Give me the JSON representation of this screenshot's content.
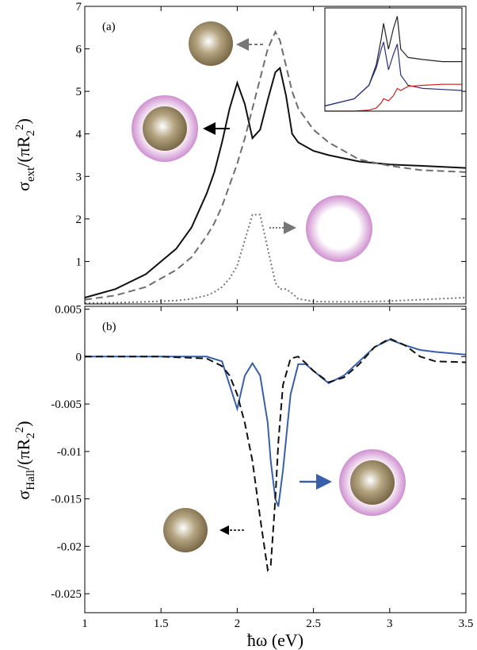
{
  "chart_data": [
    {
      "type": "line",
      "annotation": "(a)",
      "ylabel": {
        "symbol": "σ",
        "subscript": "ext",
        "denominator": "/(πR",
        "r_subscript": "2",
        "r_superscript": "2",
        "close": ")"
      },
      "xlim": [
        1,
        3.5
      ],
      "ylim": [
        0,
        7
      ],
      "yticks": [
        1,
        2,
        3,
        4,
        5,
        6,
        7
      ],
      "x": [
        1,
        1.2,
        1.4,
        1.6,
        1.7,
        1.8,
        1.85,
        1.9,
        1.95,
        2.0,
        2.05,
        2.1,
        2.15,
        2.2,
        2.25,
        2.28,
        2.32,
        2.36,
        2.4,
        2.5,
        2.6,
        2.8,
        3.0,
        3.2,
        3.5
      ],
      "series": [
        {
          "color": "#111111",
          "dash": "solid",
          "values": [
            0.15,
            0.35,
            0.7,
            1.3,
            1.8,
            2.6,
            3.1,
            3.8,
            4.6,
            5.2,
            4.7,
            3.9,
            4.1,
            4.8,
            5.45,
            5.55,
            4.9,
            4.0,
            3.8,
            3.6,
            3.5,
            3.35,
            3.28,
            3.25,
            3.2
          ]
        },
        {
          "color": "#6e6e6e",
          "dash": "dashed",
          "values": [
            0.1,
            0.2,
            0.4,
            0.8,
            1.1,
            1.6,
            1.9,
            2.3,
            2.8,
            3.3,
            3.9,
            4.6,
            5.3,
            6.0,
            6.4,
            6.2,
            5.6,
            5.0,
            4.6,
            4.1,
            3.8,
            3.4,
            3.25,
            3.15,
            3.1
          ]
        },
        {
          "color": "#777777",
          "dash": "dotted",
          "values": [
            0.02,
            0.03,
            0.05,
            0.08,
            0.12,
            0.2,
            0.28,
            0.4,
            0.6,
            0.9,
            1.5,
            2.1,
            2.1,
            1.3,
            0.5,
            0.35,
            0.35,
            0.25,
            0.12,
            0.06,
            0.05,
            0.05,
            0.07,
            0.1,
            0.15
          ]
        }
      ]
    },
    {
      "type": "line",
      "annotation": "(b)",
      "ylabel": {
        "symbol": "σ",
        "subscript": "Hall",
        "denominator": "/(πR",
        "r_subscript": "2",
        "r_superscript": "2",
        "close": ")"
      },
      "xlabel": "ħω (eV)",
      "xlim": [
        1,
        3.5
      ],
      "xticks": [
        1,
        1.5,
        2,
        2.5,
        3,
        3.5
      ],
      "ylim": [
        -0.027,
        0.0053
      ],
      "yticks": [
        0.005,
        0,
        -0.005,
        -0.01,
        -0.015,
        -0.02,
        -0.025
      ],
      "x": [
        1,
        1.5,
        1.8,
        1.9,
        1.95,
        2.0,
        2.05,
        2.1,
        2.15,
        2.2,
        2.22,
        2.25,
        2.27,
        2.3,
        2.35,
        2.4,
        2.45,
        2.5,
        2.6,
        2.7,
        2.8,
        2.9,
        3.0,
        3.1,
        3.2,
        3.3,
        3.5
      ],
      "series": [
        {
          "color": "#3a5faa",
          "dash": "solid",
          "values": [
            0,
            0,
            0,
            -0.0005,
            -0.003,
            -0.0055,
            -0.002,
            -0.0007,
            -0.002,
            -0.007,
            -0.011,
            -0.015,
            -0.0158,
            -0.012,
            -0.004,
            -0.0008,
            -0.0008,
            -0.0015,
            -0.0028,
            -0.002,
            -0.0005,
            0.001,
            0.0018,
            0.0012,
            0.0007,
            0.0005,
            0.0002
          ]
        },
        {
          "color": "#111111",
          "dash": "dashed",
          "values": [
            0,
            0,
            -0.0002,
            -0.001,
            -0.002,
            -0.004,
            -0.007,
            -0.011,
            -0.017,
            -0.0225,
            -0.022,
            -0.015,
            -0.009,
            -0.003,
            -0.0002,
            0,
            -0.0007,
            -0.0015,
            -0.0027,
            -0.0022,
            -0.0008,
            0.001,
            0.0019,
            0.0012,
            0.0,
            -0.0005,
            -0.0006
          ]
        }
      ]
    },
    {
      "type": "line",
      "xlim": [
        0.8,
        3.6
      ],
      "ylim": [
        0,
        1
      ],
      "x": [
        0.8,
        1.4,
        1.7,
        1.85,
        1.95,
        2.0,
        2.1,
        2.2,
        2.28,
        2.35,
        2.5,
        2.8,
        3.2,
        3.6
      ],
      "series": [
        {
          "color": "#222222",
          "dash": "solid",
          "values": [
            0.05,
            0.12,
            0.25,
            0.45,
            0.7,
            0.85,
            0.6,
            0.8,
            0.92,
            0.6,
            0.52,
            0.5,
            0.48,
            0.48
          ]
        },
        {
          "color": "#2b2f80",
          "dash": "solid",
          "values": [
            0.05,
            0.12,
            0.25,
            0.42,
            0.6,
            0.67,
            0.4,
            0.55,
            0.65,
            0.35,
            0.25,
            0.22,
            0.21,
            0.2
          ]
        },
        {
          "color": "#cc2222",
          "dash": "solid",
          "values": [
            0,
            0,
            0.01,
            0.03,
            0.08,
            0.12,
            0.1,
            0.15,
            0.22,
            0.2,
            0.24,
            0.25,
            0.26,
            0.26
          ]
        }
      ]
    }
  ]
}
